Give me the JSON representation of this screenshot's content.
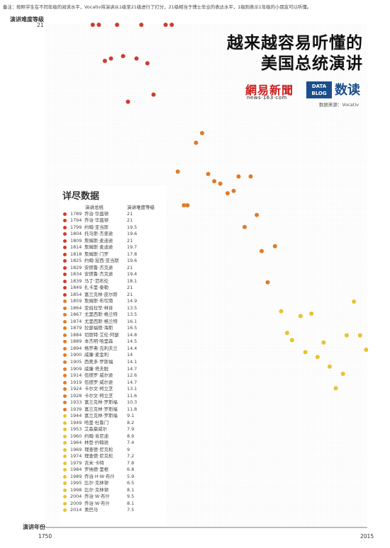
{
  "note": "备注：按照学生在不同年级的阅读水平，Vocativ将演讲从1级至21级进行了打分，21级相当于博士毕业的表达水平，1级则表示1年级的小朋友可以听懂。",
  "title_line1": "越来越容易听懂的",
  "title_line2": "美国总统演讲",
  "logo_netease": "網易新聞",
  "logo_netease_sub": "news·163·com",
  "logo_datablog": "DATA BLOG",
  "logo_shudu": "数读",
  "source": "数据来源：Vocativ",
  "panel_title": "详尽数据",
  "col_president": "演讲总统",
  "col_grade": "演讲难度等级",
  "colors": {
    "high": "#d13b2b",
    "mid": "#e07b28",
    "low": "#e8c32e"
  },
  "chart_data": {
    "type": "scatter",
    "ylabel": "演讲难度等级",
    "xlabel": "演讲年份",
    "xlim": [
      1750,
      2015
    ],
    "ylim_top": 21,
    "x_tick_labels": [
      "1750",
      "2015"
    ],
    "y_tick_labels": [
      "21"
    ],
    "grid": true,
    "points": [
      {
        "year": 1789,
        "president": "乔治·华盛顿",
        "grade": 21
      },
      {
        "year": 1794,
        "president": "乔治·华盛顿",
        "grade": 21
      },
      {
        "year": 1799,
        "president": "约翰·亚当斯",
        "grade": 19.5
      },
      {
        "year": 1804,
        "president": "托马斯·杰斐逊",
        "grade": 19.6
      },
      {
        "year": 1809,
        "president": "詹姆斯·麦迪逊",
        "grade": 21
      },
      {
        "year": 1814,
        "president": "詹姆斯·麦迪逊",
        "grade": 19.7
      },
      {
        "year": 1818,
        "president": "詹姆斯·门罗",
        "grade": 17.8
      },
      {
        "year": 1825,
        "president": "约翰·昆西·亚当斯",
        "grade": 19.6
      },
      {
        "year": 1829,
        "president": "安德鲁·杰克逊",
        "grade": 21
      },
      {
        "year": 1834,
        "president": "安德鲁·杰克逊",
        "grade": 19.4
      },
      {
        "year": 1839,
        "president": "马丁·范布伦",
        "grade": 18.1
      },
      {
        "year": 1849,
        "president": "扎卡里·泰勒",
        "grade": 21
      },
      {
        "year": 1854,
        "president": "富兰克林·皮尔斯",
        "grade": 21
      },
      {
        "year": 1859,
        "president": "詹姆斯·布坎南",
        "grade": 14.9
      },
      {
        "year": 1864,
        "president": "亚伯拉罕·林肯",
        "grade": 13.5
      },
      {
        "year": 1867,
        "president": "尤里西斯·格兰特",
        "grade": 13.5
      },
      {
        "year": 1874,
        "president": "尤里西斯·格兰特",
        "grade": 16.1
      },
      {
        "year": 1879,
        "president": "拉瑟福德·海斯",
        "grade": 16.5
      },
      {
        "year": 1884,
        "president": "切斯特·艾伦·阿瑟",
        "grade": 14.8
      },
      {
        "year": 1889,
        "president": "本杰明·哈里森",
        "grade": 14.5
      },
      {
        "year": 1894,
        "president": "格罗弗·克利夫兰",
        "grade": 14.4
      },
      {
        "year": 1900,
        "president": "威廉·麦金利",
        "grade": 14
      },
      {
        "year": 1905,
        "president": "西奥多·罗斯福",
        "grade": 14.1
      },
      {
        "year": 1909,
        "president": "威廉·塔夫脱",
        "grade": 14.7
      },
      {
        "year": 1914,
        "president": "伍德罗·威尔逊",
        "grade": 12.6
      },
      {
        "year": 1919,
        "president": "伍德罗·威尔逊",
        "grade": 14.7
      },
      {
        "year": 1924,
        "president": "卡尔文·柯立芝",
        "grade": 13.1
      },
      {
        "year": 1928,
        "president": "卡尔文·柯立芝",
        "grade": 11.6
      },
      {
        "year": 1933,
        "president": "富兰克林·罗斯福",
        "grade": 10.3
      },
      {
        "year": 1939,
        "president": "富兰克林·罗斯福",
        "grade": 11.8
      },
      {
        "year": 1944,
        "president": "富兰克林·罗斯福",
        "grade": 9.1
      },
      {
        "year": 1949,
        "president": "哈里·杜鲁门",
        "grade": 8.2
      },
      {
        "year": 1953,
        "president": "艾森豪威尔",
        "grade": 7.9
      },
      {
        "year": 1960,
        "president": "约翰·肯尼迪",
        "grade": 8.9
      },
      {
        "year": 1964,
        "president": "林登·约翰逊",
        "grade": 7.4
      },
      {
        "year": 1969,
        "president": "理查德·尼克松",
        "grade": 9
      },
      {
        "year": 1974,
        "president": "理查德·尼克松",
        "grade": 7.2
      },
      {
        "year": 1979,
        "president": "吉米·卡特",
        "grade": 7.8
      },
      {
        "year": 1984,
        "president": "罗纳德·里根",
        "grade": 6.8
      },
      {
        "year": 1989,
        "president": "乔治·H·W·布什",
        "grade": 5.9
      },
      {
        "year": 1995,
        "president": "比尔·克林顿",
        "grade": 6.5
      },
      {
        "year": 1998,
        "president": "比尔·克林顿",
        "grade": 8.1
      },
      {
        "year": 2004,
        "president": "乔治·W·布什",
        "grade": 9.5
      },
      {
        "year": 2009,
        "president": "乔治·W·布什",
        "grade": 8.1
      },
      {
        "year": 2014,
        "president": "奥巴马",
        "grade": 7.5
      }
    ]
  }
}
